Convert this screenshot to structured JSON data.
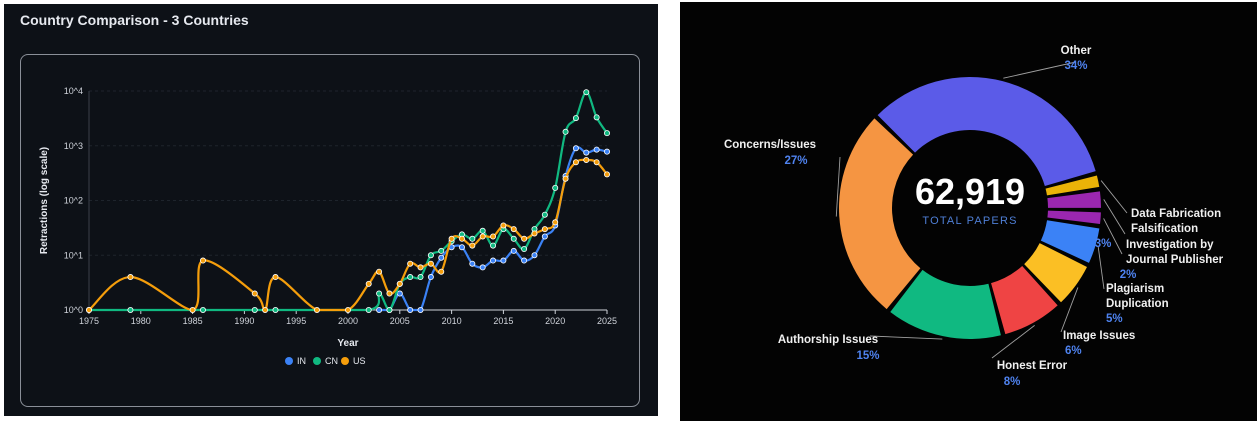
{
  "left_panel": {
    "title": "Country Comparison - 3 Countries"
  },
  "right_panel": {
    "center_value": "62,919",
    "center_label": "TOTAL PAPERS"
  },
  "colors": {
    "IN": "#3b82f6",
    "CN": "#10b981",
    "US": "#f59e0b",
    "other": "#5b5be8",
    "data_fabrication": "#eab308",
    "investigation": "#9b27b0",
    "plagiarism": "#3b82f6",
    "image_issues": "#fbbf24",
    "honest_error": "#ef4444",
    "authorship": "#10b981",
    "concerns": "#f59542"
  },
  "chart_data": [
    {
      "type": "line",
      "title": "",
      "xlabel": "Year",
      "ylabel": "Retractions (log scale)",
      "y_scale": "log",
      "xlim": [
        1975,
        2025
      ],
      "ylim": [
        1,
        10000
      ],
      "x_ticks": [
        "1975",
        "1980",
        "1985",
        "1990",
        "1995",
        "2000",
        "2005",
        "2010",
        "2015",
        "2020",
        "2025"
      ],
      "y_ticks": [
        "10^0",
        "10^1",
        "10^2",
        "10^3",
        "10^4"
      ],
      "grid": true,
      "legend": "bottom-center",
      "series": [
        {
          "name": "IN",
          "points": [
            [
              2003,
              1
            ],
            [
              2004,
              1
            ],
            [
              2005,
              2
            ],
            [
              2006,
              1
            ],
            [
              2007,
              1
            ],
            [
              2008,
              4
            ],
            [
              2009,
              9
            ],
            [
              2010,
              14
            ],
            [
              2011,
              14
            ],
            [
              2012,
              7
            ],
            [
              2013,
              6
            ],
            [
              2014,
              8
            ],
            [
              2015,
              8
            ],
            [
              2016,
              12
            ],
            [
              2017,
              8
            ],
            [
              2018,
              10
            ],
            [
              2019,
              22
            ],
            [
              2020,
              35
            ],
            [
              2021,
              280
            ],
            [
              2022,
              900
            ],
            [
              2023,
              750
            ],
            [
              2024,
              850
            ],
            [
              2025,
              780
            ]
          ]
        },
        {
          "name": "CN",
          "points": [
            [
              1975,
              1
            ],
            [
              1979,
              1
            ],
            [
              1986,
              1
            ],
            [
              1991,
              1
            ],
            [
              1993,
              1
            ],
            [
              2002,
              1
            ],
            [
              2003,
              2
            ],
            [
              2004,
              1
            ],
            [
              2005,
              3
            ],
            [
              2006,
              4
            ],
            [
              2007,
              4
            ],
            [
              2008,
              10
            ],
            [
              2009,
              12
            ],
            [
              2010,
              18
            ],
            [
              2011,
              24
            ],
            [
              2012,
              20
            ],
            [
              2013,
              28
            ],
            [
              2014,
              15
            ],
            [
              2015,
              30
            ],
            [
              2016,
              20
            ],
            [
              2017,
              13
            ],
            [
              2018,
              30
            ],
            [
              2019,
              55
            ],
            [
              2020,
              170
            ],
            [
              2021,
              1800
            ],
            [
              2022,
              3200
            ],
            [
              2023,
              9500
            ],
            [
              2024,
              3300
            ],
            [
              2025,
              1700
            ]
          ]
        },
        {
          "name": "US",
          "points": [
            [
              1975,
              1
            ],
            [
              1979,
              4
            ],
            [
              1985,
              1
            ],
            [
              1986,
              8
            ],
            [
              1991,
              2
            ],
            [
              1992,
              1
            ],
            [
              1993,
              4
            ],
            [
              1997,
              1
            ],
            [
              2000,
              1
            ],
            [
              2002,
              3
            ],
            [
              2003,
              5
            ],
            [
              2004,
              2
            ],
            [
              2005,
              3
            ],
            [
              2006,
              7
            ],
            [
              2007,
              6
            ],
            [
              2008,
              7
            ],
            [
              2009,
              5
            ],
            [
              2010,
              20
            ],
            [
              2011,
              20
            ],
            [
              2012,
              15
            ],
            [
              2013,
              22
            ],
            [
              2014,
              22
            ],
            [
              2015,
              35
            ],
            [
              2016,
              30
            ],
            [
              2017,
              20
            ],
            [
              2018,
              25
            ],
            [
              2019,
              30
            ],
            [
              2020,
              40
            ],
            [
              2021,
              250
            ],
            [
              2022,
              500
            ],
            [
              2023,
              550
            ],
            [
              2024,
              500
            ],
            [
              2025,
              300
            ]
          ]
        }
      ]
    },
    {
      "type": "pie",
      "donut": true,
      "slices": [
        {
          "label": "Other",
          "pct_label": "34%",
          "value": 34
        },
        {
          "label": "Data Fabrication",
          "pct_label": "",
          "value": 2
        },
        {
          "label": "Falsification",
          "pct_label": "3%",
          "value": 2.6
        },
        {
          "label": "Investigation by Journal Publisher",
          "pct_label": "2%",
          "value": 2
        },
        {
          "label": "Plagiarism Duplication",
          "pct_label": "5%",
          "value": 5
        },
        {
          "label": "Image Issues",
          "pct_label": "6%",
          "value": 6
        },
        {
          "label": "Honest Error",
          "pct_label": "8%",
          "value": 8
        },
        {
          "label": "Authorship Issues",
          "pct_label": "15%",
          "value": 15
        },
        {
          "label": "Concerns/Issues",
          "pct_label": "27%",
          "value": 27
        }
      ]
    }
  ]
}
